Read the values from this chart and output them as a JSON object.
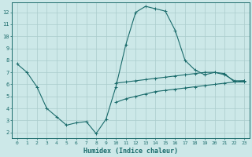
{
  "xlabel": "Humidex (Indice chaleur)",
  "bg_color": "#cce8e8",
  "line_color": "#1a6b6b",
  "grid_color": "#aacccc",
  "xlim": [
    -0.5,
    23.5
  ],
  "ylim": [
    1.5,
    12.8
  ],
  "xticks": [
    0,
    1,
    2,
    3,
    4,
    5,
    6,
    7,
    8,
    9,
    10,
    11,
    12,
    13,
    14,
    15,
    16,
    17,
    18,
    19,
    20,
    21,
    22,
    23
  ],
  "yticks": [
    2,
    3,
    4,
    5,
    6,
    7,
    8,
    9,
    10,
    11,
    12
  ],
  "line1_x": [
    0,
    1,
    2,
    3,
    4,
    5,
    6,
    7,
    8,
    9,
    10,
    11,
    12,
    13,
    14,
    15,
    16,
    17,
    18,
    19,
    20,
    21,
    22,
    23
  ],
  "line1_y": [
    7.7,
    7.0,
    5.8,
    4.0,
    3.3,
    2.6,
    2.8,
    2.9,
    1.9,
    3.1,
    5.8,
    9.3,
    12.0,
    12.5,
    12.3,
    12.1,
    10.5,
    8.0,
    7.2,
    6.8,
    7.0,
    6.8,
    6.3,
    6.3
  ],
  "line2_x": [
    10,
    11,
    12,
    13,
    14,
    15,
    16,
    17,
    18,
    19,
    20,
    21,
    22,
    23
  ],
  "line2_y": [
    6.1,
    6.2,
    6.3,
    6.4,
    6.5,
    6.6,
    6.7,
    6.8,
    6.9,
    7.0,
    7.0,
    6.9,
    6.2,
    6.2
  ],
  "line3_x": [
    10,
    11,
    12,
    13,
    14,
    15,
    16,
    17,
    18,
    19,
    20,
    21,
    22,
    23
  ],
  "line3_y": [
    4.5,
    4.8,
    5.0,
    5.2,
    5.4,
    5.5,
    5.6,
    5.7,
    5.8,
    5.9,
    6.0,
    6.1,
    6.2,
    6.3
  ]
}
